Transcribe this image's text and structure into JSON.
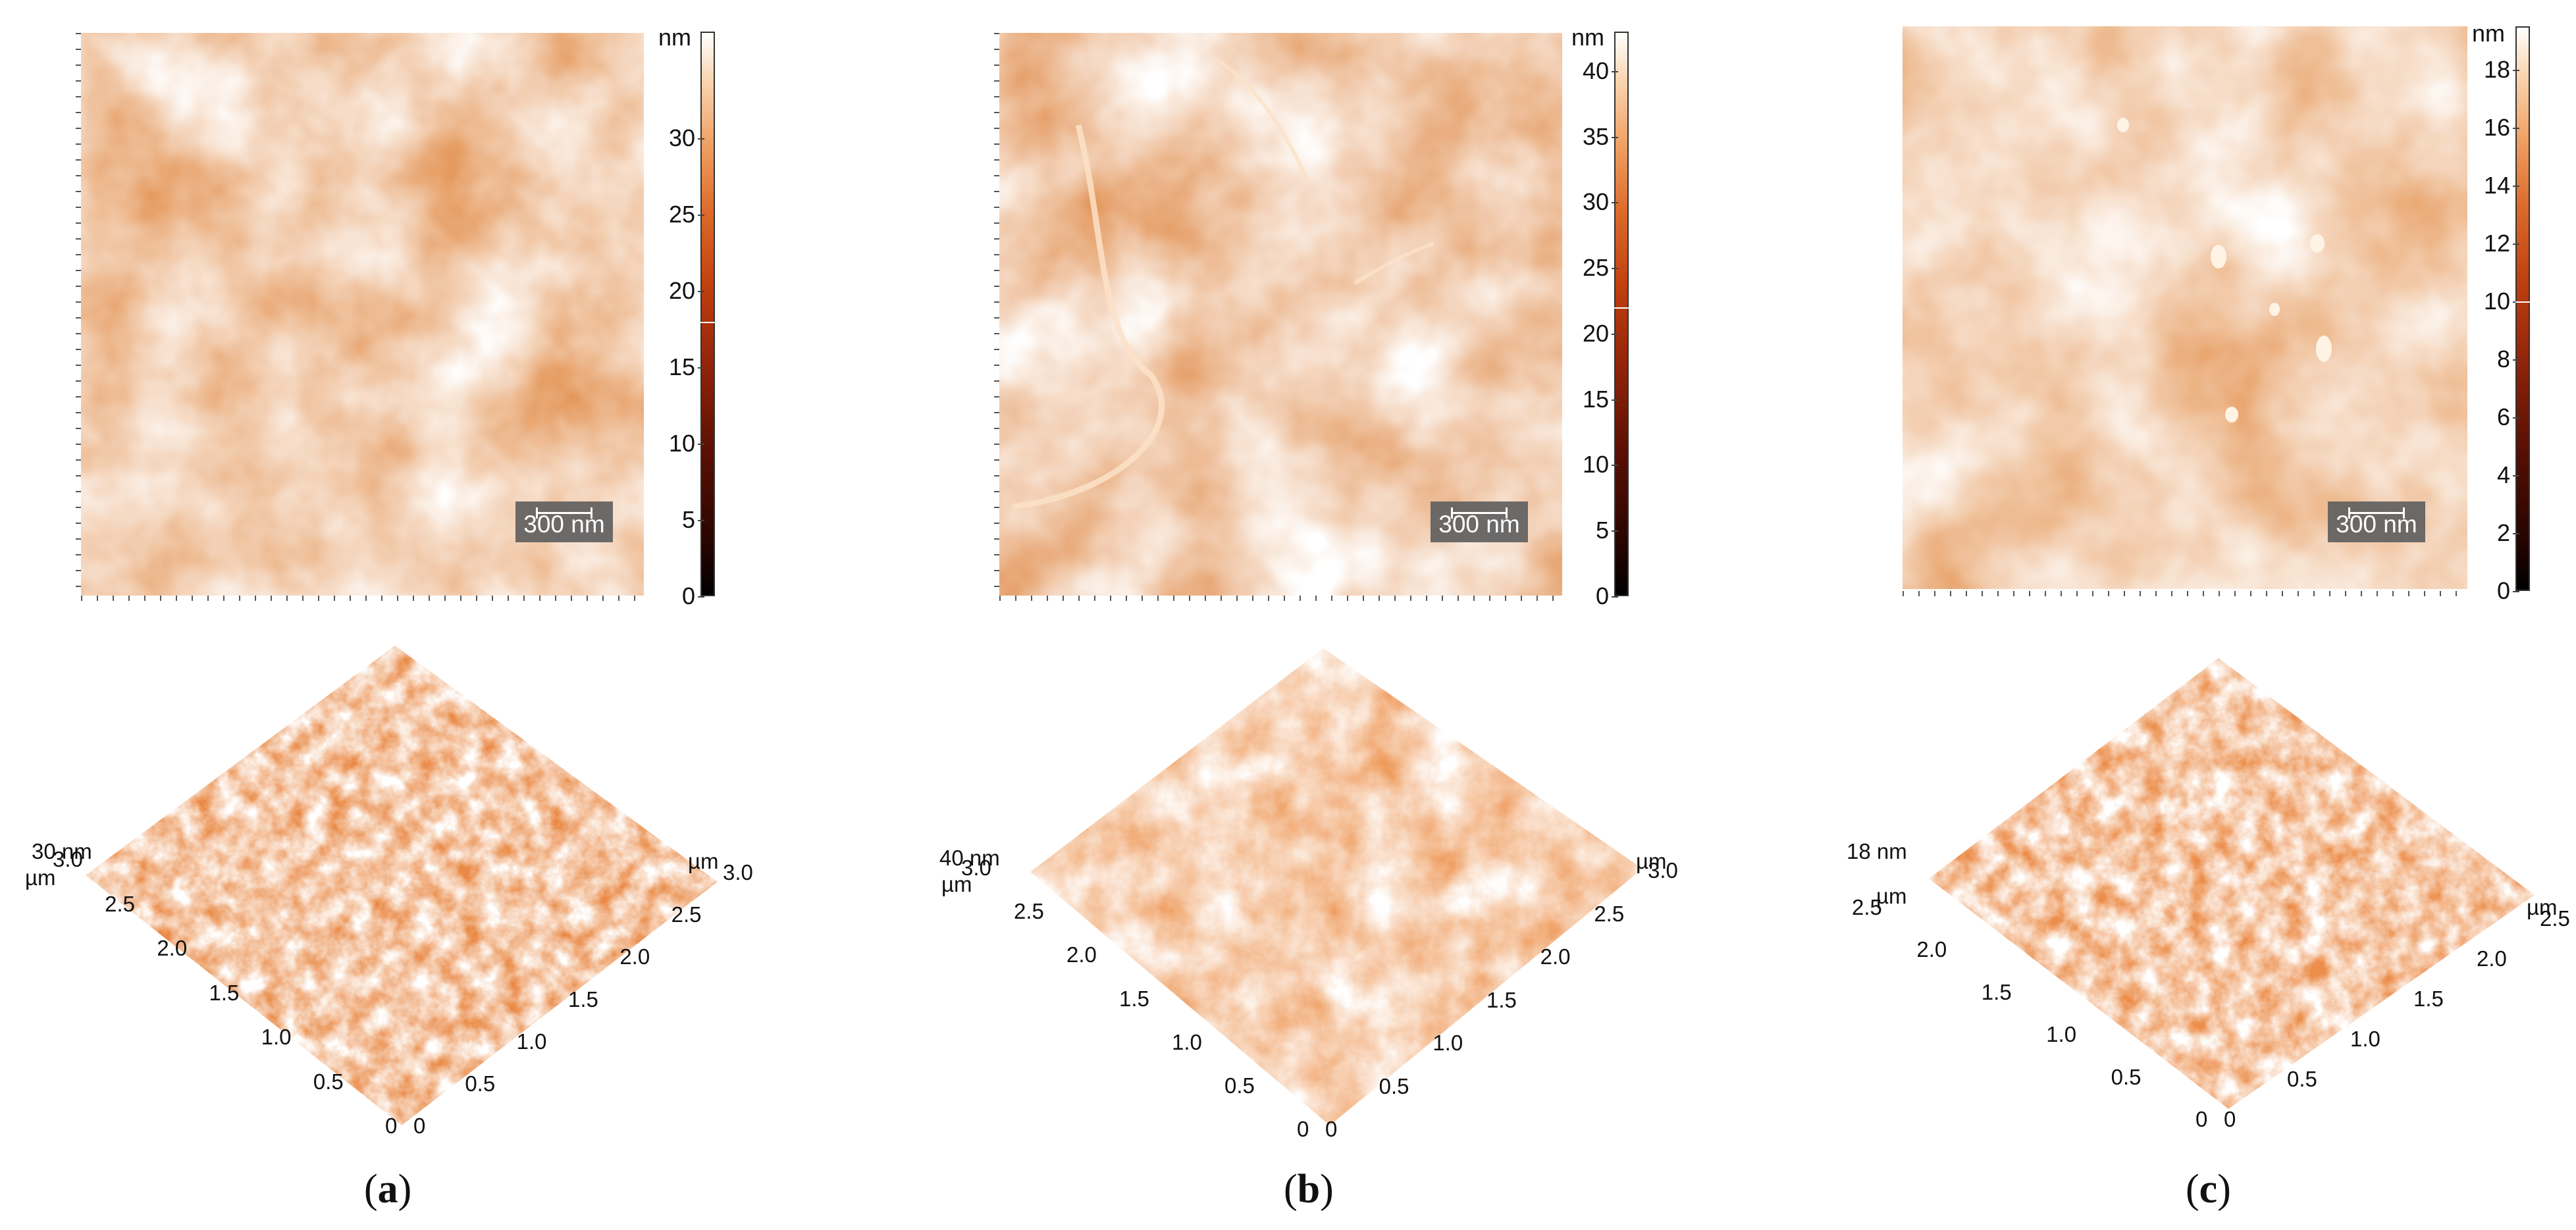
{
  "figure": {
    "panels": [
      {
        "id": "a",
        "caption_open": "(",
        "caption_letter": "a",
        "caption_close": ")",
        "colorbar_unit": "nm",
        "colorbar_ticks": [
          "30",
          "25",
          "20",
          "15",
          "10",
          "5",
          "0"
        ],
        "colorbar_marker": 18,
        "colorbar_max": 37,
        "scalebar": "300 nm",
        "z_label": "30 nm",
        "axis_unit_left": "µm",
        "axis_unit_right": "µm",
        "left_axis_ticks": [
          "3.0",
          "2.5",
          "2.0",
          "1.5",
          "1.0",
          "0.5",
          "0"
        ],
        "right_axis_ticks": [
          "0",
          "0.5",
          "1.0",
          "1.5",
          "2.0",
          "2.5",
          "3.0"
        ]
      },
      {
        "id": "b",
        "caption_open": "(",
        "caption_letter": "b",
        "caption_close": ")",
        "colorbar_unit": "nm",
        "colorbar_ticks": [
          "40",
          "35",
          "30",
          "25",
          "20",
          "15",
          "10",
          "5",
          "0"
        ],
        "colorbar_marker": 22,
        "colorbar_max": 43,
        "scalebar": "300 nm",
        "z_label": "40 nm",
        "axis_unit_left": "µm",
        "axis_unit_right": "µm",
        "left_axis_ticks": [
          "3.0",
          "2.5",
          "2.0",
          "1.5",
          "1.0",
          "0.5",
          "0"
        ],
        "right_axis_ticks": [
          "0",
          "0.5",
          "1.0",
          "1.5",
          "2.0",
          "2.5",
          "3.0"
        ]
      },
      {
        "id": "c",
        "caption_open": "(",
        "caption_letter": "c",
        "caption_close": ")",
        "colorbar_unit": "nm",
        "colorbar_ticks": [
          "18",
          "16",
          "14",
          "12",
          "10",
          "8",
          "6",
          "4",
          "2",
          "0"
        ],
        "colorbar_marker": 10,
        "colorbar_max": 19.5,
        "scalebar": "300 nm",
        "z_label": "18 nm",
        "axis_unit_left": "µm",
        "axis_unit_right": "µm",
        "left_axis_ticks": [
          "2.5",
          "2.0",
          "1.5",
          "1.0",
          "0.5",
          "0"
        ],
        "right_axis_ticks": [
          "0",
          "0.5",
          "1.0",
          "1.5",
          "2.0",
          "2.5"
        ]
      }
    ]
  },
  "colors": {
    "dark": "#120200",
    "mid": "#c0400f",
    "bright": "#f6b07a",
    "highlight": "#fde9d6"
  }
}
